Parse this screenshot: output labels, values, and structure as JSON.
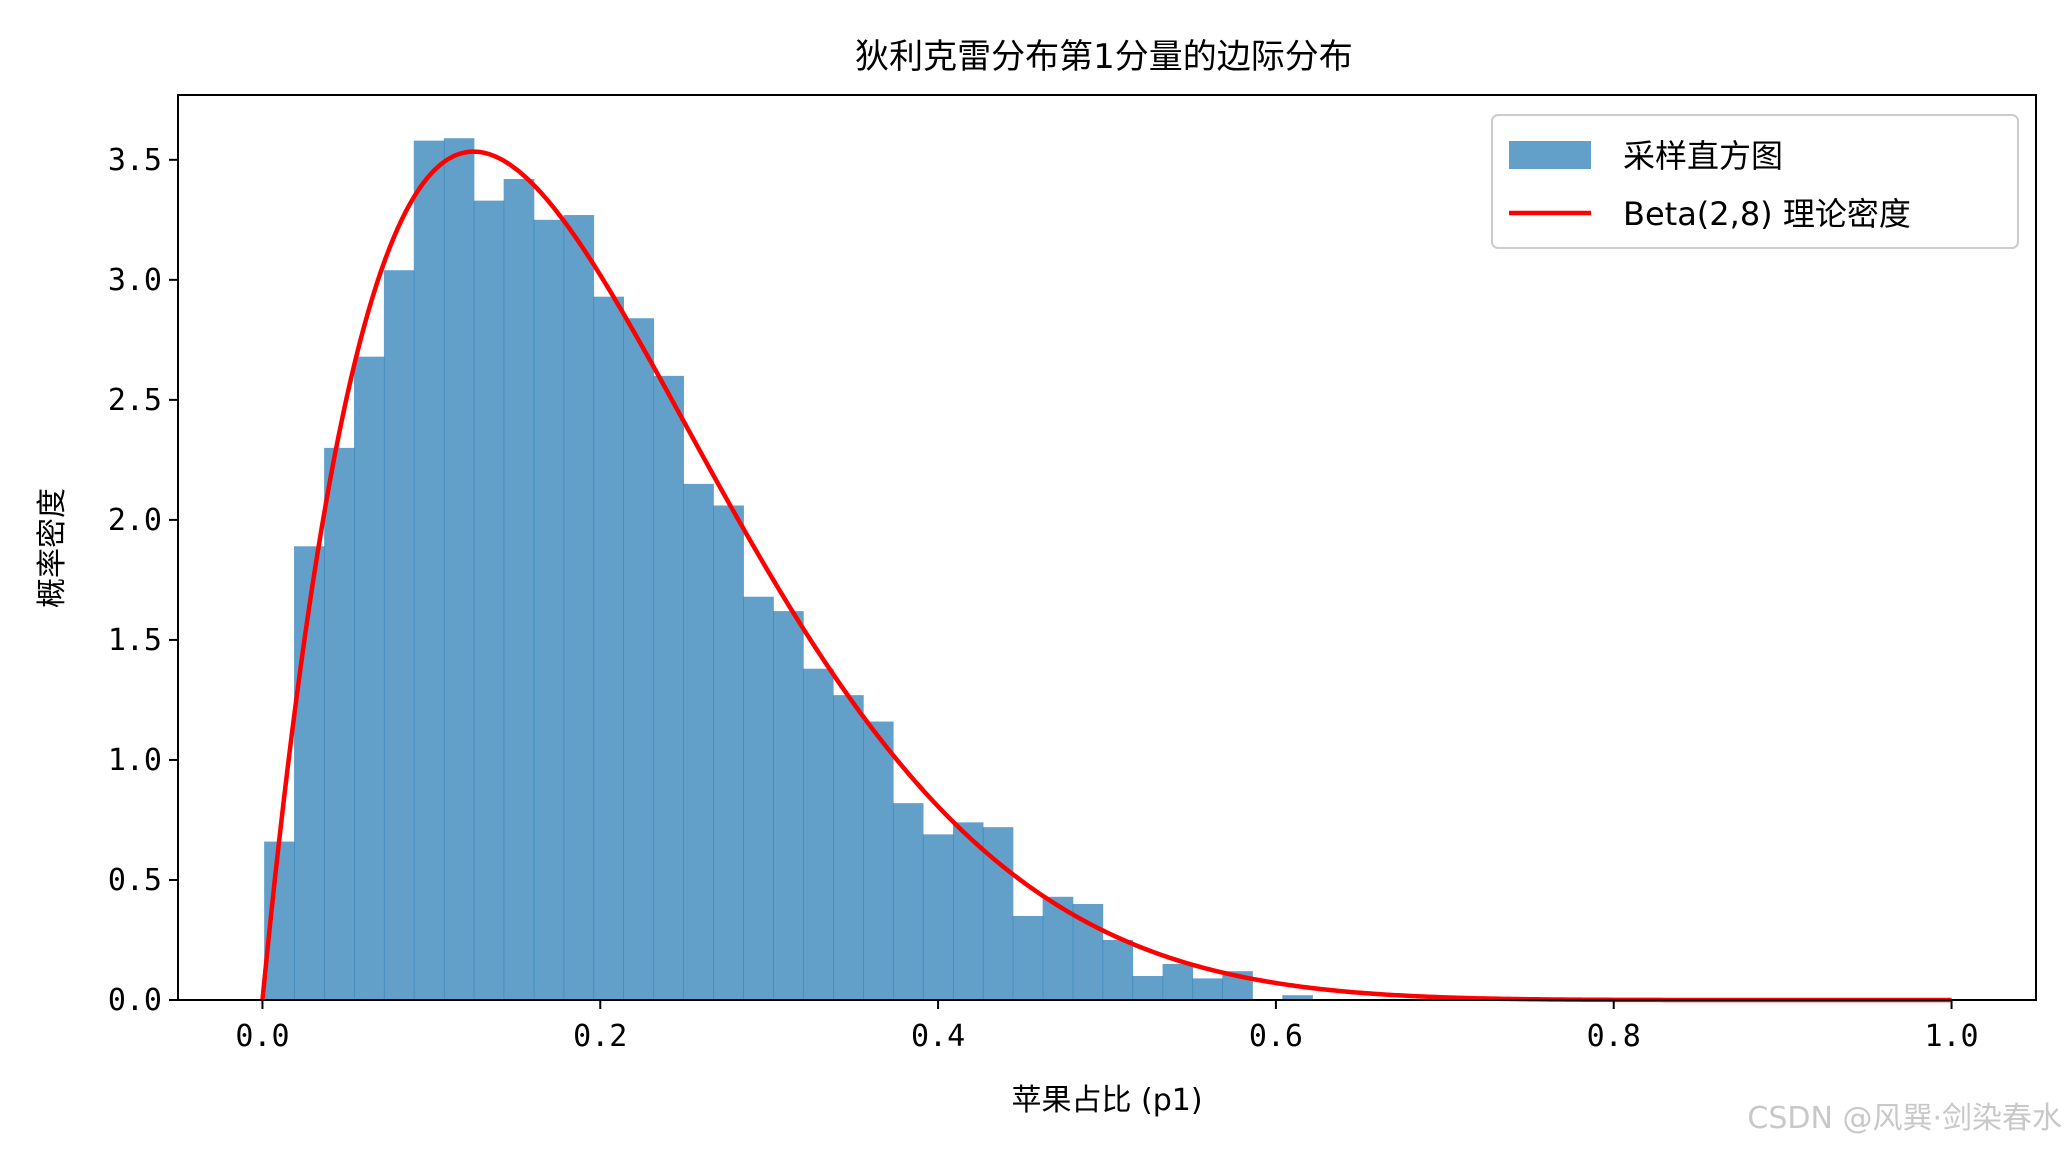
{
  "chart_data": {
    "type": "bar",
    "title": "狄利克雷分布第1分量的边际分布",
    "xlabel": "苹果占比 (p1)",
    "ylabel": "概率密度",
    "xlim": [
      -0.05,
      1.05
    ],
    "ylim": [
      0,
      3.77
    ],
    "xticks": [
      0.0,
      0.2,
      0.4,
      0.6,
      0.8,
      1.0
    ],
    "xtick_labels": [
      "0.0",
      "0.2",
      "0.4",
      "0.6",
      "0.8",
      "1.0"
    ],
    "yticks": [
      0.0,
      0.5,
      1.0,
      1.5,
      2.0,
      2.5,
      3.0,
      3.5
    ],
    "ytick_labels": [
      "0.0",
      "0.5",
      "1.0",
      "1.5",
      "2.0",
      "2.5",
      "3.0",
      "3.5"
    ],
    "legend_position": "top-right",
    "grid": false,
    "histogram": {
      "name": "采样直方图",
      "color": "#1f77b4",
      "alpha": 0.7,
      "bin_edges": [
        0.001,
        0.0187,
        0.0365,
        0.0542,
        0.0719,
        0.0896,
        0.1074,
        0.1251,
        0.1428,
        0.1606,
        0.1783,
        0.196,
        0.2137,
        0.2315,
        0.2492,
        0.2669,
        0.2847,
        0.3024,
        0.3201,
        0.3378,
        0.3556,
        0.3733,
        0.391,
        0.4088,
        0.4265,
        0.4442,
        0.4619,
        0.4797,
        0.4974,
        0.5151,
        0.5329,
        0.5506,
        0.5683,
        0.586,
        0.6038,
        0.6215
      ],
      "values": [
        0.66,
        1.89,
        2.3,
        2.68,
        3.04,
        3.58,
        3.59,
        3.33,
        3.42,
        3.25,
        3.27,
        2.93,
        2.84,
        2.6,
        2.15,
        2.06,
        1.68,
        1.62,
        1.38,
        1.27,
        1.16,
        0.82,
        0.69,
        0.74,
        0.72,
        0.35,
        0.43,
        0.4,
        0.25,
        0.1,
        0.15,
        0.09,
        0.12,
        0.0,
        0.02
      ]
    },
    "line": {
      "name": "Beta(2,8) 理论密度",
      "color": "#ff0000",
      "alpha": 2,
      "beta": 8,
      "x_range": [
        0,
        1
      ]
    }
  },
  "watermark": "CSDN @风巽·剑染春水"
}
